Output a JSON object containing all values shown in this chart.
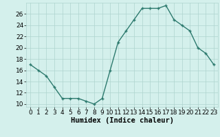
{
  "x": [
    0,
    1,
    2,
    3,
    4,
    5,
    6,
    7,
    8,
    9,
    10,
    11,
    12,
    13,
    14,
    15,
    16,
    17,
    18,
    19,
    20,
    21,
    22,
    23
  ],
  "y": [
    17,
    16,
    15,
    13,
    11,
    11,
    11,
    10.5,
    10,
    11,
    16,
    21,
    23,
    25,
    27,
    27,
    27,
    27.5,
    25,
    24,
    23,
    20,
    19,
    17
  ],
  "line_color": "#2d7a6e",
  "marker": "+",
  "bg_color": "#d4f0ec",
  "grid_color": "#aed4ce",
  "xlabel": "Humidex (Indice chaleur)",
  "xlim": [
    -0.5,
    23.5
  ],
  "ylim": [
    9.5,
    28
  ],
  "yticks": [
    10,
    12,
    14,
    16,
    18,
    20,
    22,
    24,
    26
  ],
  "xticks": [
    0,
    1,
    2,
    3,
    4,
    5,
    6,
    7,
    8,
    9,
    10,
    11,
    12,
    13,
    14,
    15,
    16,
    17,
    18,
    19,
    20,
    21,
    22,
    23
  ],
  "tick_fontsize": 6.5,
  "label_fontsize": 7.5
}
